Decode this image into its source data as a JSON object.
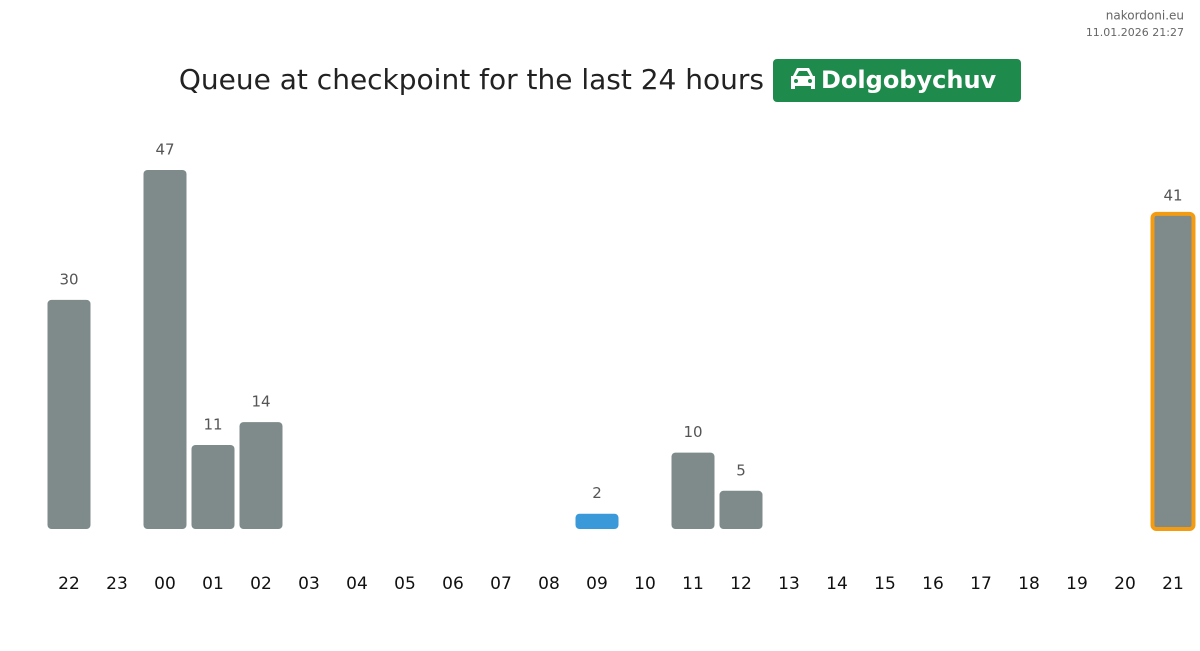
{
  "chart_data": {
    "type": "bar",
    "title": "Queue at checkpoint for the last 24 hours",
    "badge": "Dolgobychuv",
    "site": "nakordoni.eu",
    "timestamp": "11.01.2026 21:27",
    "categories": [
      "22",
      "23",
      "00",
      "01",
      "02",
      "03",
      "04",
      "05",
      "06",
      "07",
      "08",
      "09",
      "10",
      "11",
      "12",
      "13",
      "14",
      "15",
      "16",
      "17",
      "18",
      "19",
      "20",
      "21"
    ],
    "values": [
      30,
      null,
      47,
      11,
      14,
      null,
      null,
      null,
      null,
      null,
      null,
      2,
      null,
      10,
      5,
      null,
      null,
      null,
      null,
      null,
      null,
      null,
      null,
      41
    ],
    "colors": [
      "#7f8a8a",
      null,
      "#7f8a8a",
      "#7f8a8a",
      "#7f8a8a",
      null,
      null,
      null,
      null,
      null,
      null,
      "#3a9ad9",
      null,
      "#7f8a8a",
      "#7f8a8a",
      null,
      null,
      null,
      null,
      null,
      null,
      null,
      null,
      "#7f8a8a"
    ],
    "edge_colors": [
      null,
      null,
      null,
      null,
      null,
      null,
      null,
      null,
      null,
      null,
      null,
      null,
      null,
      null,
      null,
      null,
      null,
      null,
      null,
      null,
      null,
      null,
      null,
      "#f39c12"
    ],
    "badge_color": "#1e8a4c"
  }
}
